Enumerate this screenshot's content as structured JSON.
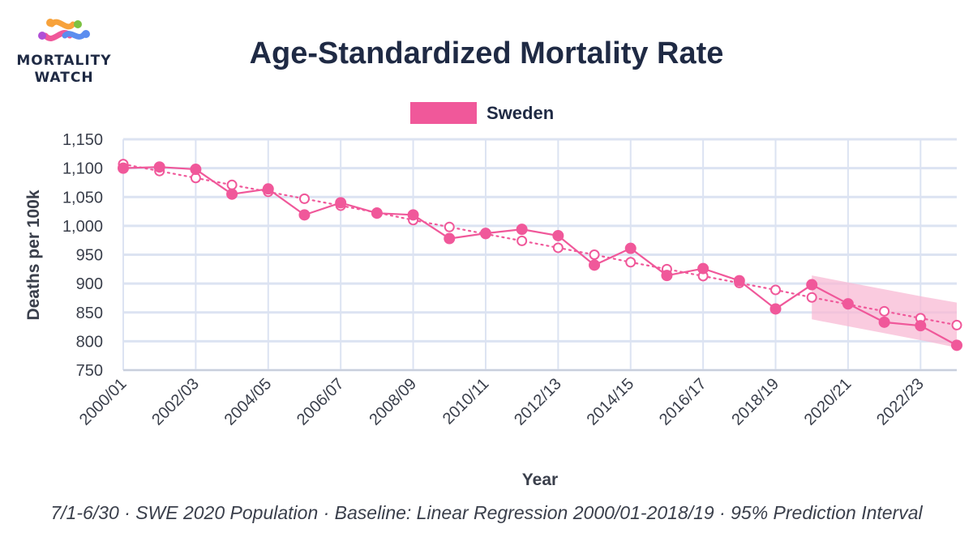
{
  "logo": {
    "line1": "MORTALITY",
    "line2": "WATCH"
  },
  "chart_data": {
    "type": "line",
    "title": "Age-Standardized Mortality Rate",
    "xlabel": "Year",
    "ylabel": "Deaths per 100k",
    "ylim": [
      750,
      1150
    ],
    "yticks": [
      750,
      800,
      850,
      900,
      950,
      1000,
      1050,
      1100,
      1150
    ],
    "ytick_labels": [
      "750",
      "800",
      "850",
      "900",
      "950",
      "1,000",
      "1,050",
      "1,100",
      "1,150"
    ],
    "categories": [
      "2000/01",
      "2001/02",
      "2002/03",
      "2003/04",
      "2004/05",
      "2005/06",
      "2006/07",
      "2007/08",
      "2008/09",
      "2009/10",
      "2010/11",
      "2011/12",
      "2012/13",
      "2013/14",
      "2014/15",
      "2015/16",
      "2016/17",
      "2017/18",
      "2018/19",
      "2019/20",
      "2020/21",
      "2021/22",
      "2022/23",
      "2023/24"
    ],
    "xtick_labels": [
      "2000/01",
      "2002/03",
      "2004/05",
      "2006/07",
      "2008/09",
      "2010/11",
      "2012/13",
      "2014/15",
      "2016/17",
      "2018/19",
      "2020/21",
      "2022/23"
    ],
    "legend": {
      "label": "Sweden",
      "position": "top-center"
    },
    "series": [
      {
        "name": "Sweden",
        "color": "#f0589a",
        "values": [
          1100,
          1102,
          1098,
          1055,
          1064,
          1019,
          1040,
          1022,
          1019,
          978,
          987,
          994,
          983,
          932,
          961,
          914,
          926,
          905,
          856,
          898,
          865,
          833,
          827,
          793
        ]
      },
      {
        "name": "Baseline",
        "style": "dotted",
        "color": "#f0589a",
        "values": [
          1107,
          1095,
          1083,
          1071,
          1059,
          1047,
          1035,
          1023,
          1010,
          998,
          986,
          974,
          962,
          950,
          937,
          925,
          913,
          901,
          889,
          876,
          864,
          852,
          840,
          828
        ]
      }
    ],
    "prediction_interval": {
      "color": "#f8b9d4",
      "start_index": 19,
      "end_index": 23,
      "lower": [
        838,
        826,
        814,
        802,
        789
      ],
      "upper": [
        914,
        902,
        890,
        878,
        867
      ]
    },
    "grid": true
  },
  "footer": {
    "text": "7/1-6/30 · SWE 2020 Population · Baseline: Linear Regression 2000/01-2018/19 · 95% Prediction Interval"
  }
}
